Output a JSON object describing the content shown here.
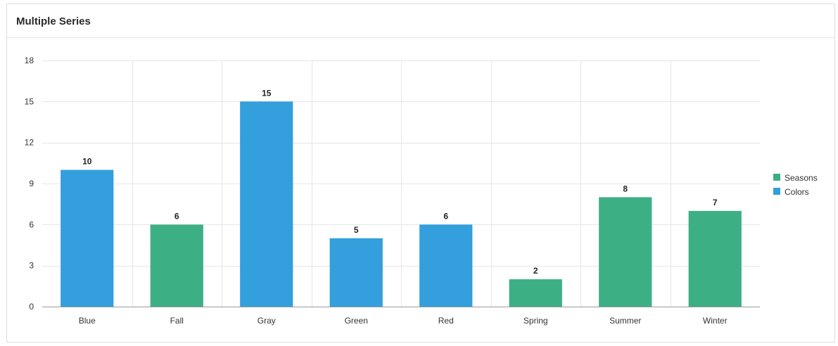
{
  "panel": {
    "title": "Multiple Series"
  },
  "chart_data": {
    "type": "bar",
    "title": "Multiple Series",
    "xlabel": "",
    "ylabel": "",
    "ylim": [
      0,
      18
    ],
    "yticks": [
      0,
      3,
      6,
      9,
      12,
      15,
      18
    ],
    "grid": true,
    "legend_position": "right",
    "categories": [
      "Blue",
      "Fall",
      "Gray",
      "Green",
      "Red",
      "Spring",
      "Summer",
      "Winter"
    ],
    "series": [
      {
        "name": "Seasons",
        "color": "#3daf85",
        "values": [
          null,
          6,
          null,
          null,
          null,
          2,
          8,
          7
        ]
      },
      {
        "name": "Colors",
        "color": "#339fdd",
        "values": [
          10,
          null,
          15,
          5,
          6,
          null,
          null,
          null
        ]
      }
    ]
  }
}
